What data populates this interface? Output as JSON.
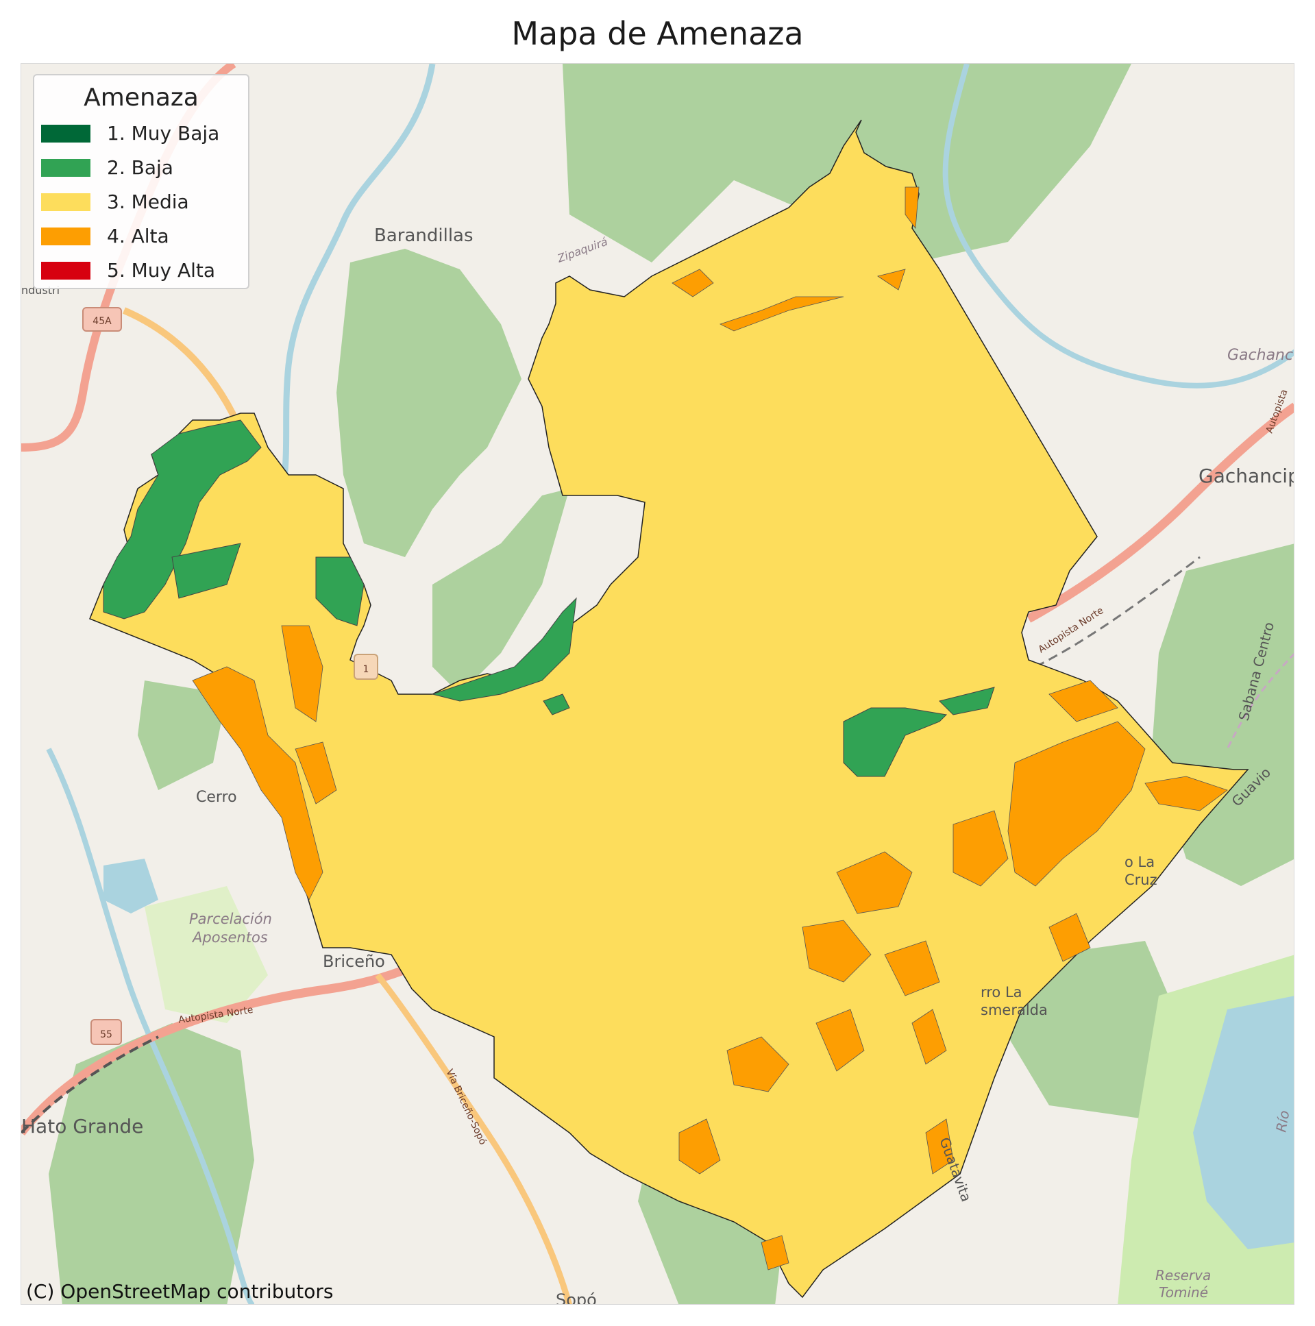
{
  "title": "Mapa de Amenaza",
  "legend": {
    "title": "Amenaza",
    "items": [
      {
        "label": "1. Muy Baja",
        "color": "#006837"
      },
      {
        "label": "2. Baja",
        "color": "#31a354"
      },
      {
        "label": "3. Media",
        "color": "#fddd5c"
      },
      {
        "label": "4. Alta",
        "color": "#fd9e02"
      },
      {
        "label": "5. Muy Alta",
        "color": "#d7000f"
      }
    ]
  },
  "places": {
    "barandillas": "Barandillas",
    "gachancipa": "Gachancip",
    "gachancipa_it": "Gachanc",
    "cerro": "Cerro",
    "parcelacion": "Parcelación",
    "aposentos": "Aposentos",
    "briceno": "Briceño",
    "hato_grande": "Hato Grande",
    "la_cruz_1": "o La",
    "la_cruz_2": "Cruz",
    "esmeralda_1": "rro La",
    "esmeralda_2": "smeralda",
    "reserva": "Reserva",
    "tomine": "Tominé",
    "sopo": "Sopó",
    "industria": "ndustri",
    "zipa": "Zipaquirá"
  },
  "roads": {
    "r45a": "45A",
    "r55": "55",
    "r1": "1",
    "autopista_norte_1": "Autopista Norte",
    "autopista_norte_2": "Autopista Norte",
    "autopista_3": "Autopista",
    "via_briceno_sopo": "Vía Briceño-Sopó",
    "sabana_centro": "Sabana Centro",
    "guavio": "Guavio",
    "guatavita": "Guatavita",
    "rio": "Río"
  },
  "attribution": "(C) OpenStreetMap contributors"
}
